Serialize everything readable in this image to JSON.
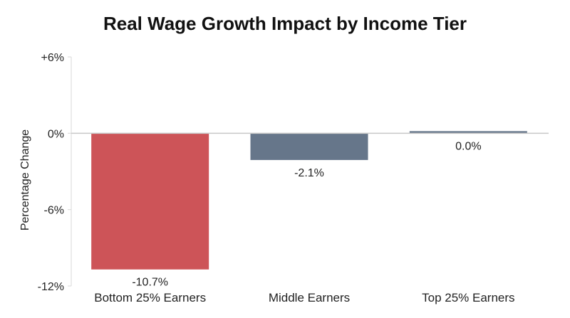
{
  "chart_data": {
    "type": "bar",
    "title": "Real Wage Growth Impact by Income Tier",
    "xlabel": "",
    "ylabel": "Percentage Change",
    "categories": [
      "Bottom 25% Earners",
      "Middle Earners",
      "Top 25% Earners"
    ],
    "values": [
      -10.7,
      -2.1,
      0.0
    ],
    "data_labels": [
      "-10.7%",
      "-2.1%",
      "0.0%"
    ],
    "colors": [
      "#cd5458",
      "#66768a",
      "#66768a"
    ],
    "ylim": [
      -12,
      6
    ],
    "yticks": [
      6,
      0,
      -6,
      -12
    ],
    "ytick_labels": [
      "+6%",
      "0%",
      "-6%",
      "-12%"
    ],
    "grid": false,
    "legend": "none",
    "zero_line_color": "#c8c8c8",
    "axis_color": "#d9d9d9"
  }
}
